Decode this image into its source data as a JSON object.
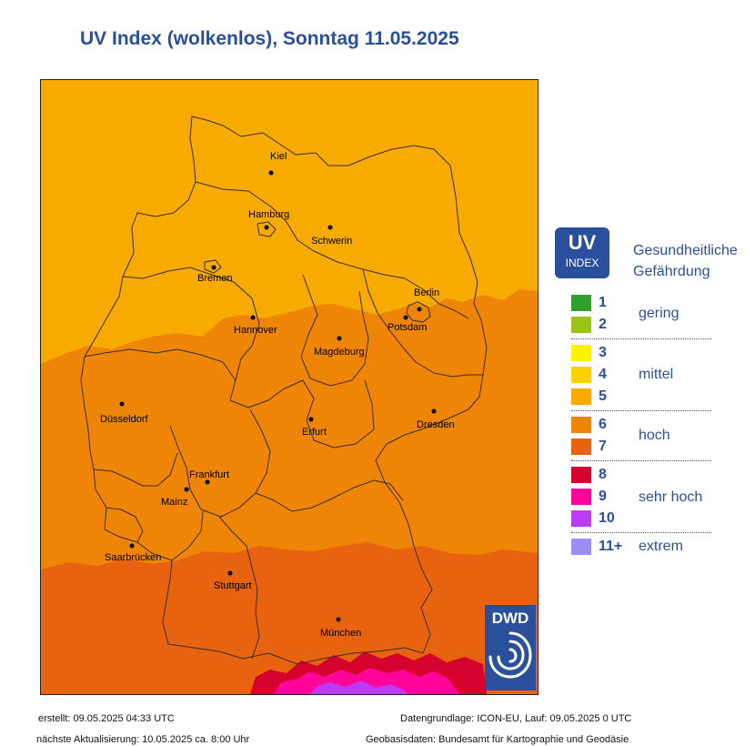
{
  "title": "UV Index (wolkenlos), Sonntag 11.05.2025",
  "colors": {
    "uv5": "#f7ab00",
    "uv6": "#ee8506",
    "uv7": "#e8630f",
    "uv8": "#d5022e",
    "uv9": "#ff0599",
    "uv10": "#bb3cf5",
    "brand": "#2a4f9c"
  },
  "cities": [
    {
      "name": "Kiel"
    },
    {
      "name": "Hamburg"
    },
    {
      "name": "Schwerin"
    },
    {
      "name": "Bremen"
    },
    {
      "name": "Berlin"
    },
    {
      "name": "Potsdam"
    },
    {
      "name": "Hannover"
    },
    {
      "name": "Magdeburg"
    },
    {
      "name": "Düsseldorf"
    },
    {
      "name": "Erfurt"
    },
    {
      "name": "Dresden"
    },
    {
      "name": "Frankfurt"
    },
    {
      "name": "Mainz"
    },
    {
      "name": "Saarbrücken"
    },
    {
      "name": "Stuttgart"
    },
    {
      "name": "München"
    }
  ],
  "logo": {
    "text": "DWD",
    "icon": "dwd-swirl-icon"
  },
  "legend": {
    "badge_uv": "UV",
    "badge_index": "INDEX",
    "heading_line1": "Gesundheitliche",
    "heading_line2": "Gefährdung",
    "levels": [
      {
        "label": "1",
        "color": "#2fa02c"
      },
      {
        "label": "2",
        "color": "#9bc416"
      },
      {
        "label": "3",
        "color": "#fff200"
      },
      {
        "label": "4",
        "color": "#ffd100"
      },
      {
        "label": "5",
        "color": "#f7ab00"
      },
      {
        "label": "6",
        "color": "#ee8506"
      },
      {
        "label": "7",
        "color": "#e8630f"
      },
      {
        "label": "8",
        "color": "#d5022e"
      },
      {
        "label": "9",
        "color": "#ff0599"
      },
      {
        "label": "10",
        "color": "#bb3cf5"
      },
      {
        "label": "11+",
        "color": "#9d8ef5"
      }
    ],
    "categories": [
      "gering",
      "mittel",
      "hoch",
      "sehr hoch",
      "extrem"
    ]
  },
  "footer": {
    "created": "erstellt: 09.05.2025 04:33 UTC",
    "next_update": "nächste Aktualisierung:  10.05.2025 ca. 8:00 Uhr",
    "data_basis": "Datengrundlage: ICON-EU, Lauf: 09.05.2025 0 UTC",
    "geo_basis": "Geobasisdaten: Bundesamt für Kartographie und Geodäsie"
  }
}
